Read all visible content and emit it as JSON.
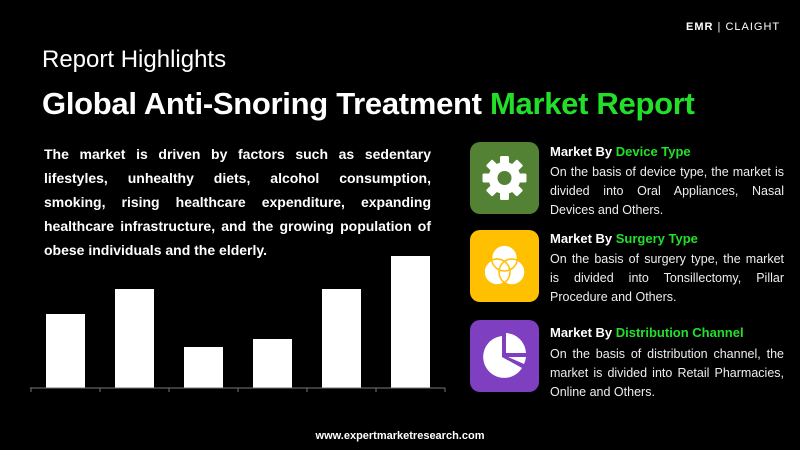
{
  "header": {
    "subtitle": "Report Highlights",
    "title_main": "Global Anti-Snoring Treatment ",
    "title_accent": "Market Report"
  },
  "logo": {
    "left": "EMR",
    "right": "CLAIGHT"
  },
  "intro": "The market is driven by factors such as sedentary lifestyles, unhealthy diets, alcohol consumption, smoking, rising healthcare expenditure, expanding healthcare infrastructure, and the growing population of obese individuals and the elderly.",
  "segments": [
    {
      "prefix": "Market By ",
      "accent": "Device Type",
      "body": "On the basis of device type, the market is divided into Oral Appliances, Nasal Devices and Others.",
      "icon": "gear-icon",
      "color": "#548235"
    },
    {
      "prefix": "Market By ",
      "accent": "Surgery Type",
      "body": "On the basis of surgery type, the market is divided into Tonsillectomy, Pillar Procedure and Others.",
      "icon": "venn-icon",
      "color": "#ffc000"
    },
    {
      "prefix": "Market By ",
      "accent": "Distribution Channel",
      "body": "On the basis of distribution channel, the market is divided into Retail Pharmacies, Online and Others.",
      "icon": "pie-chart-icon",
      "color": "#7e3fc0"
    }
  ],
  "footer": "www.expertmarketresearch.com",
  "colors": {
    "accent": "#22e02a",
    "bars": "#ffffff",
    "background": "#000000"
  },
  "chart_data": {
    "type": "bar",
    "categories": [
      "",
      "",
      "",
      "",
      "",
      ""
    ],
    "values": [
      74,
      99,
      41,
      49,
      99,
      132
    ],
    "ylim": [
      0,
      140
    ],
    "grid": false,
    "axis_labels": false
  }
}
